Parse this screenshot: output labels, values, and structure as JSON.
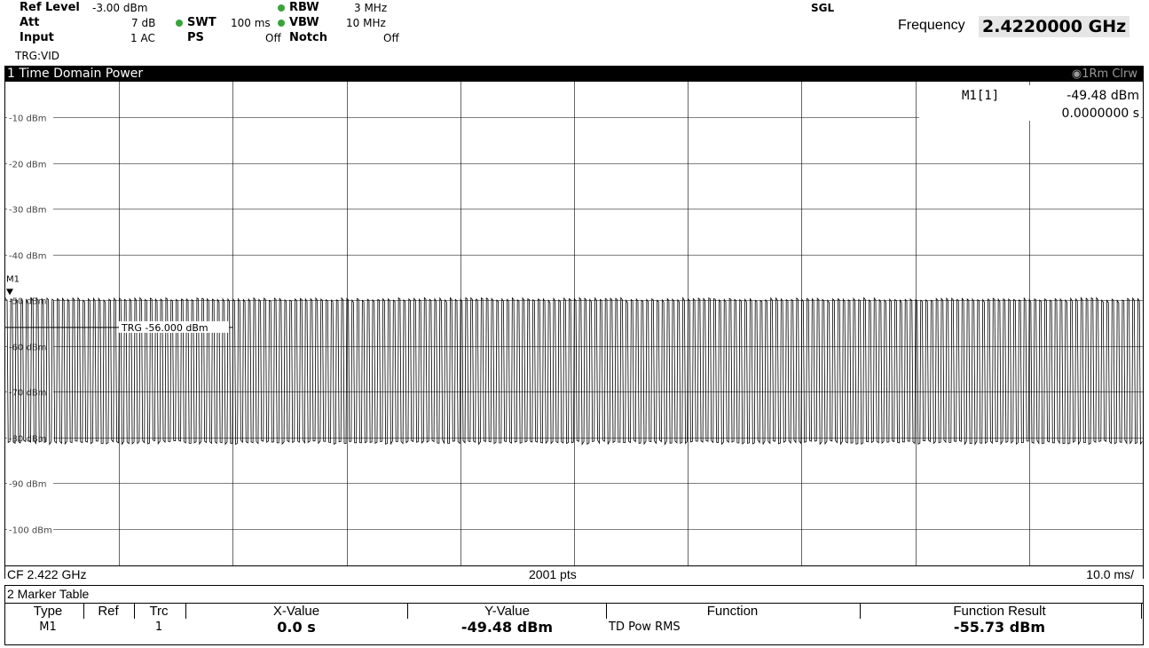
{
  "header": {
    "ref_level_label": "Ref Level",
    "ref_level_value": "-3.00 dBm",
    "att_label": "Att",
    "att_value": "7 dB",
    "input_label": "Input",
    "input_value": "1 AC",
    "trg": "TRG:VID",
    "swt_label": "SWT",
    "swt_value": "100 ms",
    "ps_label": "PS",
    "ps_value": "Off",
    "rbw_label": "RBW",
    "rbw_value": "3 MHz",
    "vbw_label": "VBW",
    "vbw_value": "10 MHz",
    "notch_label": "Notch",
    "notch_value": "Off",
    "sgl": "SGL",
    "frequency_label": "Frequency",
    "frequency_value": "2.4220000 GHz",
    "indicator_color": "#3aa43a"
  },
  "window": {
    "title": "1 Time Domain Power",
    "trace_info": "1Rm Clrw"
  },
  "marker_readout": {
    "name": "M1[1]",
    "level": "-49.48 dBm",
    "time": "0.0000000 s"
  },
  "plot_labels": {
    "marker": "M1",
    "trigger": "TRG  -56.000 dBm"
  },
  "chart_data": {
    "type": "line",
    "title": "1 Time Domain Power",
    "ylim": [
      -105,
      0
    ],
    "y_ticks": [
      "-10 dBm",
      "-20 dBm",
      "-30 dBm",
      "-40 dBm",
      "-50 dBm",
      "-60 dBm",
      "-70 dBm",
      "-80 dBm",
      "-90 dBm",
      "-100 dBm"
    ],
    "y_tick_values": [
      -10,
      -20,
      -30,
      -40,
      -50,
      -60,
      -70,
      -80,
      -90,
      -100
    ],
    "x_divisions": 10,
    "x_range_ms": [
      0,
      100
    ],
    "grid": true,
    "trigger_level_dbm": -56.0,
    "signal": {
      "peak_dbm": -49.5,
      "floor_dbm": -81,
      "pulse_count": 220,
      "description_points": 2001
    },
    "marker": {
      "name": "M1",
      "x_s": 0.0,
      "y_dbm": -49.48
    }
  },
  "footer": {
    "cf": "CF 2.422 GHz",
    "pts": "2001 pts",
    "div": "10.0 ms/"
  },
  "marker_table": {
    "title": "2 Marker Table",
    "headers": [
      "Type",
      "Ref",
      "Trc",
      "X-Value",
      "Y-Value",
      "Function",
      "Function Result"
    ],
    "row": {
      "type": "M1",
      "ref": "",
      "trc": "1",
      "x": "0.0 s",
      "y": "-49.48 dBm",
      "function": "TD Pow RMS",
      "result": "-55.73 dBm"
    }
  }
}
